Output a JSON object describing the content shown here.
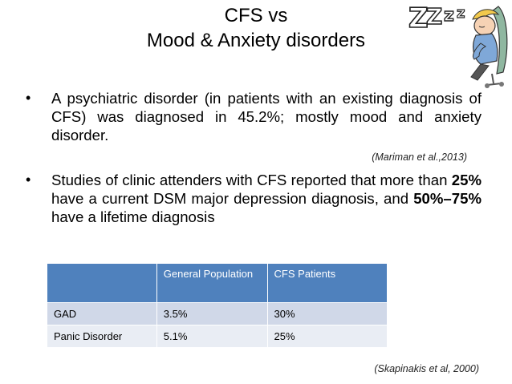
{
  "slide": {
    "title_line1": "CFS vs",
    "title_line2": "Mood & Anxiety disorders",
    "bullet1": "A psychiatric disorder (in patients with an existing diagnosis of CFS) was diagnosed in 45.2%; mostly mood and anxiety disorder.",
    "citation1": "(Mariman et al.,2013)",
    "bullet2": {
      "part1": "Studies of clinic attenders with CFS reported that more than ",
      "bold1": "25%",
      "part2": " have a current DSM major depression diagnosis, and ",
      "bold2": "50%–75%",
      "part3": " have a lifetime diagnosis"
    },
    "citation2": "(Skapinakis et al, 2000)",
    "bullet_glyph": "•"
  },
  "table": {
    "headers": [
      "",
      "General Population",
      "CFS Patients"
    ],
    "rows": [
      [
        "GAD",
        "3.5%",
        "30%"
      ],
      [
        "Panic Disorder",
        "5.1%",
        "25%"
      ]
    ]
  },
  "colors": {
    "header_bg": "#4f81bd",
    "row1_bg": "#d0d8e8",
    "row2_bg": "#e9edf4"
  },
  "icons": {
    "clipart": "sleeping-person-zzz-icon"
  }
}
